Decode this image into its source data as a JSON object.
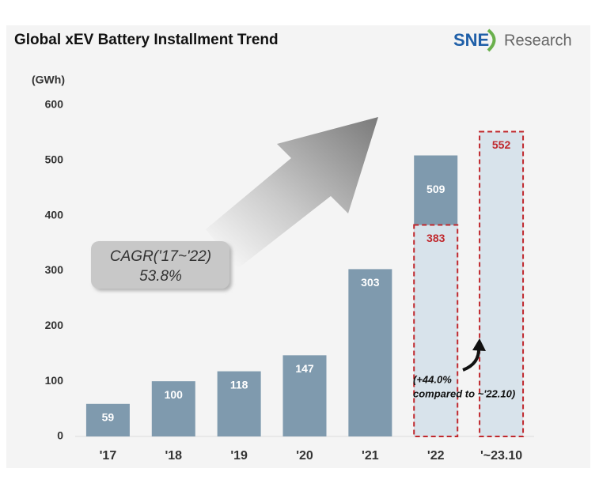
{
  "chart_data": {
    "type": "bar",
    "title": "Global xEV Battery Installment Trend",
    "logo": {
      "brand": "SNE",
      "suffix": "Research"
    },
    "y_label": "(GWh)",
    "categories": [
      "'17",
      "'18",
      "'19",
      "'20",
      "'21",
      "'22",
      "'~23.10"
    ],
    "series": [
      {
        "color": "#7f9aae",
        "label_color": "#ffffff",
        "dashed": false,
        "values": [
          59,
          100,
          118,
          147,
          303,
          509,
          null
        ]
      },
      {
        "color": "#d8e3eb",
        "border_color": "#c0282d",
        "label_color": "#c0282d",
        "dashed": true,
        "values": [
          null,
          null,
          null,
          null,
          null,
          383,
          552
        ]
      }
    ],
    "ylim": [
      0,
      600
    ],
    "yticks": [
      0,
      100,
      200,
      300,
      400,
      500,
      600
    ],
    "grid": false,
    "annotations": {
      "cagr": [
        "CAGR('17~'22)",
        "53.8%"
      ],
      "growth": [
        "(+44.0%",
        "compared to ~'22.10)"
      ]
    }
  }
}
